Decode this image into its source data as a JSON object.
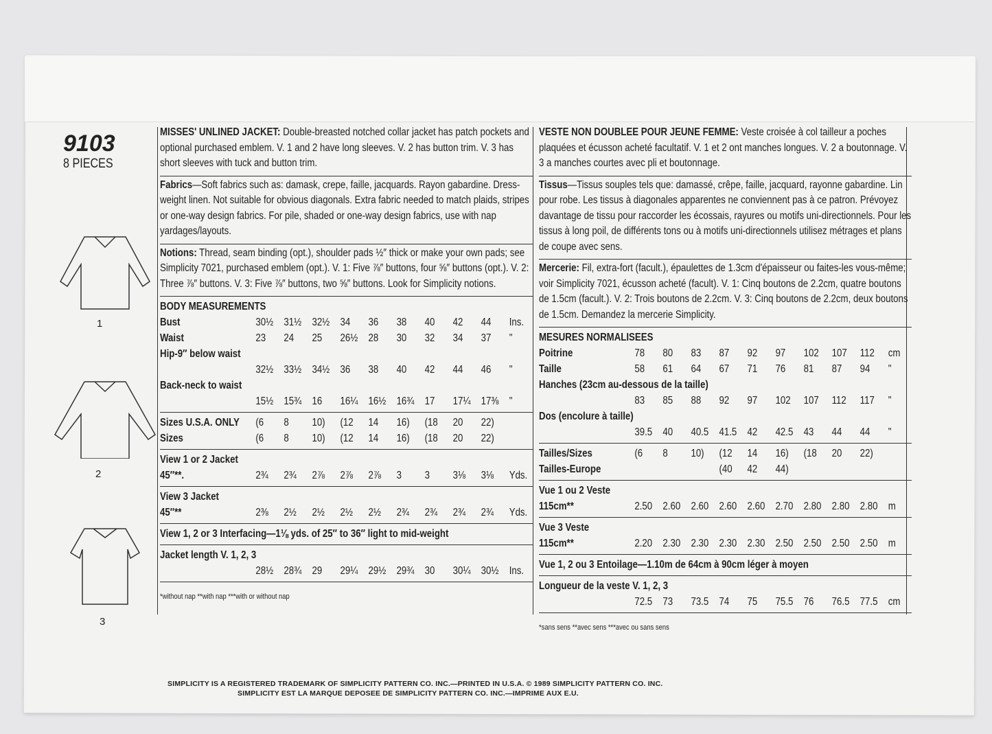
{
  "pattern_number": "9103",
  "pieces": "8 PIECES",
  "views": [
    "1",
    "2",
    "3"
  ],
  "english": {
    "description_title": "MISSES' UNLINED JACKET:",
    "description": "Double-breasted notched collar jacket has patch pockets and optional purchased emblem. V. 1 and 2 have long sleeves. V. 2 has button trim. V. 3 has short sleeves with tuck and button trim.",
    "fabrics_title": "Fabrics",
    "fabrics": "—Soft fabrics such as: damask, crepe, faille, jacquards. Rayon gabardine. Dress-weight linen. Not suitable for obvious diagonals. Extra fabric needed to match plaids, stripes or one-way design fabrics. For pile, shaded or one-way design fabrics, use with nap yardages/layouts.",
    "notions_title": "Notions:",
    "notions": " Thread, seam binding (opt.), shoulder pads ½″ thick or make your own pads; see Simplicity 7021, purchased emblem (opt.). V. 1: Five ⅞″ buttons, four ⅝″ buttons (opt.). V. 2: Three ⅞″ buttons. V. 3: Five ⅞″ buttons, two ⅝″ buttons. Look for Simplicity notions.",
    "tables": [
      {
        "rows": [
          {
            "label": "BODY MEASUREMENTS",
            "values": [],
            "unit": ""
          },
          {
            "label": "Bust",
            "values": [
              "30½",
              "31½",
              "32½",
              "34",
              "36",
              "38",
              "40",
              "42",
              "44"
            ],
            "unit": "Ins."
          },
          {
            "label": "Waist",
            "values": [
              "23",
              "24",
              "25",
              "26½",
              "28",
              "30",
              "32",
              "34",
              "37"
            ],
            "unit": "\""
          },
          {
            "label": "Hip-9″ below waist",
            "values": [],
            "unit": ""
          },
          {
            "label": "",
            "values": [
              "32½",
              "33½",
              "34½",
              "36",
              "38",
              "40",
              "42",
              "44",
              "46"
            ],
            "unit": "\""
          },
          {
            "label": "Back-neck to waist",
            "values": [],
            "unit": ""
          },
          {
            "label": "",
            "values": [
              "15½",
              "15¾",
              "16",
              "16¼",
              "16½",
              "16¾",
              "17",
              "17¼",
              "17⅜"
            ],
            "unit": "\""
          }
        ]
      },
      {
        "rows": [
          {
            "label": "Sizes U.S.A. ONLY",
            "values": [
              "(6",
              "8",
              "10)",
              "(12",
              "14",
              "16)",
              "(18",
              "20",
              "22)"
            ],
            "unit": ""
          },
          {
            "label": "Sizes",
            "values": [
              "(6",
              "8",
              "10)",
              "(12",
              "14",
              "16)",
              "(18",
              "20",
              "22)"
            ],
            "unit": ""
          }
        ]
      },
      {
        "rows": [
          {
            "label": "View 1 or 2 Jacket",
            "values": [],
            "unit": ""
          },
          {
            "label": "45″**.",
            "values": [
              "2¾",
              "2¾",
              "2⅞",
              "2⅞",
              "2⅞",
              "3",
              "3",
              "3⅛",
              "3⅛"
            ],
            "unit": "Yds."
          }
        ]
      },
      {
        "rows": [
          {
            "label": "View 3 Jacket",
            "values": [],
            "unit": ""
          },
          {
            "label": "45″**",
            "values": [
              "2⅜",
              "2½",
              "2½",
              "2½",
              "2½",
              "2¾",
              "2¾",
              "2¾",
              "2¾"
            ],
            "unit": "Yds."
          }
        ]
      },
      {
        "rows": [
          {
            "label": "View 1, 2 or 3 Interfacing—",
            "text": "1⅛ yds. of 25″ to 36″ light to mid-weight",
            "values": [],
            "unit": ""
          }
        ]
      },
      {
        "rows": [
          {
            "label": "Jacket length V. 1, 2, 3",
            "values": [],
            "unit": ""
          },
          {
            "label": "",
            "values": [
              "28½",
              "28¾",
              "29",
              "29¼",
              "29½",
              "29¾",
              "30",
              "30¼",
              "30½"
            ],
            "unit": "Ins."
          }
        ]
      }
    ],
    "footnote": "*without nap  **with nap  ***with or without nap"
  },
  "french": {
    "description_title": "VESTE NON DOUBLEE POUR JEUNE FEMME:",
    "description": "Veste croisée à col tailleur a poches plaquées et écusson acheté facultatif. V. 1 et 2 ont manches longues. V. 2 a boutonnage. V. 3 a manches courtes avec pli et boutonnage.",
    "fabrics_title": "Tissus",
    "fabrics": "—Tissus souples tels que: damassé, crêpe, faille, jacquard, rayonne gabardine. Lin pour robe. Les tissus à diagonales apparentes ne conviennent pas à ce patron. Prévoyez davantage de tissu pour raccorder les écossais, rayures ou motifs uni-directionnels. Pour les tissus à long poil, de différents tons ou à motifs uni-directionnels utilisez métrages et plans de coupe avec sens.",
    "notions_title": "Mercerie:",
    "notions": " Fil, extra-fort (facult.), épaulettes de 1.3cm d'épaisseur ou faites-les vous-même; voir Simplicity 7021, écusson acheté (facult). V. 1: Cinq boutons de 2.2cm, quatre boutons de 1.5cm (facult.). V. 2: Trois boutons de 2.2cm. V. 3: Cinq boutons de 2.2cm, deux boutons de 1.5cm. Demandez la mercerie Simplicity.",
    "tables": [
      {
        "rows": [
          {
            "label": "MESURES NORMALISEES",
            "values": [],
            "unit": ""
          },
          {
            "label": "Poitrine",
            "values": [
              "78",
              "80",
              "83",
              "87",
              "92",
              "97",
              "102",
              "107",
              "112"
            ],
            "unit": "cm"
          },
          {
            "label": "Taille",
            "values": [
              "58",
              "61",
              "64",
              "67",
              "71",
              "76",
              "81",
              "87",
              "94"
            ],
            "unit": "\""
          },
          {
            "label": "Hanches (23cm au-dessous de la taille)",
            "values": [],
            "unit": ""
          },
          {
            "label": "",
            "values": [
              "83",
              "85",
              "88",
              "92",
              "97",
              "102",
              "107",
              "112",
              "117"
            ],
            "unit": "\""
          },
          {
            "label": "Dos (encolure à taille)",
            "values": [],
            "unit": ""
          },
          {
            "label": "",
            "values": [
              "39.5",
              "40",
              "40.5",
              "41.5",
              "42",
              "42.5",
              "43",
              "44",
              "44"
            ],
            "unit": "\""
          }
        ]
      },
      {
        "rows": [
          {
            "label": "Tailles/Sizes",
            "values": [
              "(6",
              "8",
              "10)",
              "(12",
              "14",
              "16)",
              "(18",
              "20",
              "22)"
            ],
            "unit": ""
          },
          {
            "label": "Tailles-Europe",
            "values": [
              "",
              "",
              "",
              "(40",
              "42",
              "44)",
              "",
              "",
              ""
            ],
            "unit": ""
          }
        ]
      },
      {
        "rows": [
          {
            "label": "Vue 1 ou 2 Veste",
            "values": [],
            "unit": ""
          },
          {
            "label": "115cm**",
            "values": [
              "2.50",
              "2.60",
              "2.60",
              "2.60",
              "2.60",
              "2.70",
              "2.80",
              "2.80",
              "2.80"
            ],
            "unit": "m"
          }
        ]
      },
      {
        "rows": [
          {
            "label": "Vue 3 Veste",
            "values": [],
            "unit": ""
          },
          {
            "label": "115cm**",
            "values": [
              "2.20",
              "2.30",
              "2.30",
              "2.30",
              "2.30",
              "2.50",
              "2.50",
              "2.50",
              "2.50"
            ],
            "unit": "m"
          }
        ]
      },
      {
        "rows": [
          {
            "label": "Vue 1, 2 ou 3 Entoilage—",
            "text": "1.10m de 64cm à 90cm léger à moyen",
            "values": [],
            "unit": ""
          }
        ]
      },
      {
        "rows": [
          {
            "label": "Longueur de la veste V. 1, 2, 3",
            "values": [],
            "unit": ""
          },
          {
            "label": "",
            "values": [
              "72.5",
              "73",
              "73.5",
              "74",
              "75",
              "75.5",
              "76",
              "76.5",
              "77.5"
            ],
            "unit": "cm"
          }
        ]
      }
    ],
    "footnote": "*sans sens  **avec sens  ***avec ou sans sens"
  },
  "footer": {
    "line1": "SIMPLICITY IS A REGISTERED TRADEMARK OF SIMPLICITY PATTERN CO. INC.—PRINTED IN U.S.A. © 1989 SIMPLICITY PATTERN CO. INC.",
    "line2": "SIMPLICITY EST LA MARQUE DEPOSEE DE SIMPLICITY PATTERN CO. INC.—IMPRIME AUX E.U."
  }
}
